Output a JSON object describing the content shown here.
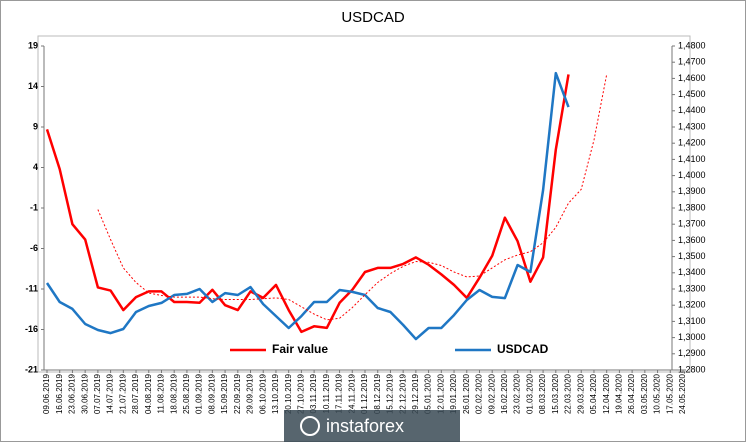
{
  "chart_data": {
    "type": "line",
    "title": "USDCAD",
    "categories": [
      "09.06.2019",
      "16.06.2019",
      "23.06.2019",
      "30.06.2019",
      "07.07.2019",
      "14.07.2019",
      "21.07.2019",
      "28.07.2019",
      "04.08.2019",
      "11.08.2019",
      "18.08.2019",
      "25.08.2019",
      "01.09.2019",
      "08.09.2019",
      "15.09.2019",
      "22.09.2019",
      "29.09.2019",
      "06.10.2019",
      "13.10.2019",
      "20.10.2019",
      "27.10.2019",
      "03.11.2019",
      "10.11.2019",
      "17.11.2019",
      "24.11.2019",
      "01.12.2019",
      "08.12.2019",
      "15.12.2019",
      "22.12.2019",
      "29.12.2019",
      "05.01.2020",
      "12.01.2020",
      "19.01.2020",
      "26.01.2020",
      "02.02.2020",
      "09.02.2020",
      "16.02.2020",
      "23.02.2020",
      "01.03.2020",
      "08.03.2020",
      "15.03.2020",
      "22.03.2020",
      "29.03.2020",
      "05.04.2020",
      "12.04.2020",
      "19.04.2020",
      "26.04.2020",
      "03.05.2020",
      "10.05.2020",
      "17.05.2020",
      "24.05.2020"
    ],
    "series": [
      {
        "name": "Fair value",
        "color": "#ff0000",
        "width": 2.5,
        "values": [
          8.7,
          3.8,
          -3.0,
          -4.9,
          -10.8,
          -11.2,
          -13.6,
          -12.0,
          -11.3,
          -11.3,
          -12.6,
          -12.6,
          -12.7,
          -11.1,
          -13.0,
          -13.6,
          -11.3,
          -12.1,
          -10.5,
          -13.6,
          -16.3,
          -15.6,
          -15.8,
          -12.7,
          -11.1,
          -8.9,
          -8.4,
          -8.4,
          -7.9,
          -7.1,
          -8.0,
          -9.2,
          -10.5,
          -12.1,
          -9.6,
          -6.9,
          -2.2,
          -5.1,
          -10.1,
          -7.1,
          6.2,
          15.5,
          null,
          null,
          null,
          null,
          null,
          null,
          null,
          null,
          null
        ]
      },
      {
        "name": "USDCAD",
        "color": "#1f77c4",
        "width": 2.5,
        "axis": "y2",
        "values": [
          1.3337,
          1.322,
          1.3177,
          1.3084,
          1.3047,
          1.3028,
          1.3053,
          1.3158,
          1.3195,
          1.3214,
          1.3263,
          1.327,
          1.33,
          1.322,
          1.3275,
          1.3263,
          1.3312,
          1.3207,
          1.3133,
          1.3059,
          1.3133,
          1.322,
          1.322,
          1.3294,
          1.3282,
          1.3263,
          1.3183,
          1.3158,
          1.3078,
          1.2991,
          1.3059,
          1.3059,
          1.3139,
          1.3232,
          1.3294,
          1.3251,
          1.3244,
          1.3448,
          1.3405,
          1.3911,
          1.4633,
          1.4423,
          null,
          null,
          null,
          null,
          null,
          null,
          null,
          null,
          null
        ]
      },
      {
        "color": "#ff0000",
        "width": 1,
        "dotted": true,
        "values": [
          null,
          null,
          null,
          null,
          -1.2,
          -4.9,
          -8.4,
          -10.2,
          -11.5,
          -11.8,
          -12.0,
          -12.0,
          -12.0,
          -12.2,
          -12.3,
          -12.3,
          -12.3,
          -12.2,
          -12.1,
          -12.3,
          -13.2,
          -14.1,
          -14.8,
          -14.6,
          -13.3,
          -11.7,
          -10.2,
          -9.1,
          -8.2,
          -7.6,
          -7.7,
          -8.1,
          -8.9,
          -9.5,
          -9.4,
          -8.4,
          -7.4,
          -6.8,
          -6.4,
          -5.3,
          -3.4,
          -0.4,
          1.3,
          7.4,
          15.5,
          null,
          null,
          null,
          null,
          null,
          null
        ]
      }
    ],
    "ylim": [
      -21,
      19
    ],
    "yticks": [
      -21,
      -16,
      -11,
      -6,
      -1,
      4,
      9,
      14,
      19
    ],
    "y2lim": [
      1.28,
      1.48
    ],
    "y2ticks": [
      {
        "value": 1.28,
        "label": "1,2800"
      },
      {
        "value": 1.29,
        "label": "1,2900"
      },
      {
        "value": 1.3,
        "label": "1,3000"
      },
      {
        "value": 1.31,
        "label": "1,3100"
      },
      {
        "value": 1.32,
        "label": "1,3200"
      },
      {
        "value": 1.33,
        "label": "1,3300"
      },
      {
        "value": 1.34,
        "label": "1,3400"
      },
      {
        "value": 1.35,
        "label": "1,3500"
      },
      {
        "value": 1.36,
        "label": "1,3600"
      },
      {
        "value": 1.37,
        "label": "1,3700"
      },
      {
        "value": 1.38,
        "label": "1,3800"
      },
      {
        "value": 1.39,
        "label": "1,3900"
      },
      {
        "value": 1.4,
        "label": "1,4000"
      },
      {
        "value": 1.41,
        "label": "1,4100"
      },
      {
        "value": 1.42,
        "label": "1,4200"
      },
      {
        "value": 1.43,
        "label": "1,4300"
      },
      {
        "value": 1.44,
        "label": "1,4400"
      },
      {
        "value": 1.45,
        "label": "1,4500"
      },
      {
        "value": 1.46,
        "label": "1,4600"
      },
      {
        "value": 1.47,
        "label": "1,4700"
      },
      {
        "value": 1.48,
        "label": "1,4800"
      }
    ],
    "grid": false,
    "legend": "bottom",
    "annotation": "instaforex"
  }
}
